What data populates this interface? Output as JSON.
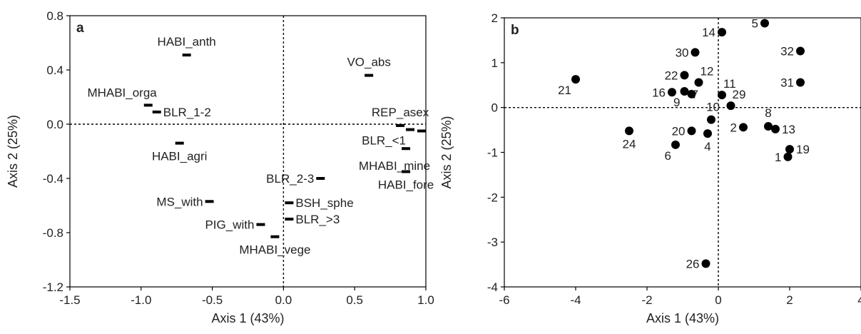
{
  "chart_data": [
    {
      "type": "scatter",
      "panel_label": "a",
      "xlabel": "Axis 1 (43%)",
      "ylabel": "Axis 2 (25%)",
      "xlim": [
        -1.5,
        1.0
      ],
      "ylim": [
        -1.2,
        0.8
      ],
      "xticks": [
        -1.5,
        -1.0,
        -0.5,
        0.0,
        0.5,
        1.0
      ],
      "xtick_labels": [
        "-1.5",
        "-1.0",
        "-0.5",
        "0.0",
        "0.5",
        "1.0"
      ],
      "yticks": [
        -1.2,
        -0.8,
        -0.4,
        0.0,
        0.4,
        0.8
      ],
      "ytick_labels": [
        "-1.2",
        "-0.8",
        "-0.4",
        "0.0",
        "0.4",
        "0.8"
      ],
      "marker": "dash",
      "zero_lines": "dotted",
      "grid": false,
      "points": [
        {
          "label": "HABI_anth",
          "x": -0.68,
          "y": 0.51,
          "pos": "above"
        },
        {
          "label": "VO_abs",
          "x": 0.6,
          "y": 0.36,
          "pos": "above"
        },
        {
          "label": "MHABI_orga",
          "x": -0.95,
          "y": 0.14,
          "pos": "above-left"
        },
        {
          "label": "BLR_1-2",
          "x": -0.89,
          "y": 0.09,
          "pos": "right"
        },
        {
          "label": "REP_asex",
          "x": 0.82,
          "y": -0.01,
          "pos": "above"
        },
        {
          "label": "BLR_<1",
          "x": 0.89,
          "y": -0.04,
          "pos": "below-left"
        },
        {
          "label": "",
          "x": 0.97,
          "y": -0.05,
          "pos": "none"
        },
        {
          "label": "HABI_agri",
          "x": -0.73,
          "y": -0.14,
          "pos": "below"
        },
        {
          "label": "MHABI_mine",
          "x": 0.86,
          "y": -0.18,
          "pos": "below-far"
        },
        {
          "label": "BLR_2-3",
          "x": 0.26,
          "y": -0.4,
          "pos": "left"
        },
        {
          "label": "HABI_fore",
          "x": 0.86,
          "y": -0.35,
          "pos": "below"
        },
        {
          "label": "MS_with",
          "x": -0.52,
          "y": -0.57,
          "pos": "left"
        },
        {
          "label": "BSH_sphe",
          "x": 0.04,
          "y": -0.58,
          "pos": "right"
        },
        {
          "label": "BLR_>3",
          "x": 0.04,
          "y": -0.7,
          "pos": "right"
        },
        {
          "label": "PIG_with",
          "x": -0.16,
          "y": -0.74,
          "pos": "left"
        },
        {
          "label": "MHABI_vege",
          "x": -0.06,
          "y": -0.83,
          "pos": "below"
        }
      ]
    },
    {
      "type": "scatter",
      "panel_label": "b",
      "xlabel": "Axis 1 (43%)",
      "ylabel": "Axis 2 (25%)",
      "xlim": [
        -6,
        4
      ],
      "ylim": [
        -4,
        2
      ],
      "xticks": [
        -6,
        -4,
        -2,
        0,
        2,
        4
      ],
      "xtick_labels": [
        "-6",
        "-4",
        "-2",
        "0",
        "2",
        "4"
      ],
      "yticks": [
        -4,
        -3,
        -2,
        -1,
        0,
        1,
        2
      ],
      "ytick_labels": [
        "-4",
        "-3",
        "-2",
        "-1",
        "0",
        "1",
        "2"
      ],
      "marker": "circle",
      "zero_lines": "dotted",
      "grid": false,
      "points": [
        {
          "label": "5",
          "x": 1.3,
          "y": 1.88,
          "pos": "left"
        },
        {
          "label": "14",
          "x": 0.1,
          "y": 1.68,
          "pos": "left"
        },
        {
          "label": "32",
          "x": 2.3,
          "y": 1.26,
          "pos": "left"
        },
        {
          "label": "30",
          "x": -0.65,
          "y": 1.23,
          "pos": "left"
        },
        {
          "label": "12",
          "x": -0.55,
          "y": 0.56,
          "pos": "above-right"
        },
        {
          "label": "22",
          "x": -0.95,
          "y": 0.72,
          "pos": "left"
        },
        {
          "label": "21",
          "x": -4.0,
          "y": 0.63,
          "pos": "below-left"
        },
        {
          "label": "31",
          "x": 2.3,
          "y": 0.56,
          "pos": "left"
        },
        {
          "label": "16",
          "x": -1.3,
          "y": 0.34,
          "pos": "left"
        },
        {
          "label": "7",
          "x": -0.75,
          "y": 0.3,
          "pos": "below-right"
        },
        {
          "label": "9",
          "x": -0.95,
          "y": 0.36,
          "pos": "below-left"
        },
        {
          "label": "11",
          "x": 0.1,
          "y": 0.28,
          "pos": "above-right"
        },
        {
          "label": "29",
          "x": 0.35,
          "y": 0.04,
          "pos": "above-right"
        },
        {
          "label": "10",
          "x": -0.2,
          "y": -0.27,
          "pos": "above-left"
        },
        {
          "label": "8",
          "x": 1.4,
          "y": -0.42,
          "pos": "above"
        },
        {
          "label": "2",
          "x": 0.7,
          "y": -0.44,
          "pos": "left"
        },
        {
          "label": "13",
          "x": 1.6,
          "y": -0.48,
          "pos": "right"
        },
        {
          "label": "20",
          "x": -0.75,
          "y": -0.52,
          "pos": "left"
        },
        {
          "label": "24",
          "x": -2.5,
          "y": -0.52,
          "pos": "below"
        },
        {
          "label": "4",
          "x": -0.3,
          "y": -0.58,
          "pos": "below"
        },
        {
          "label": "19",
          "x": 2.0,
          "y": -0.93,
          "pos": "right"
        },
        {
          "label": "6",
          "x": -1.2,
          "y": -0.83,
          "pos": "below-left"
        },
        {
          "label": "1",
          "x": 1.95,
          "y": -1.1,
          "pos": "left"
        },
        {
          "label": "26",
          "x": -0.35,
          "y": -3.48,
          "pos": "left"
        }
      ]
    }
  ]
}
